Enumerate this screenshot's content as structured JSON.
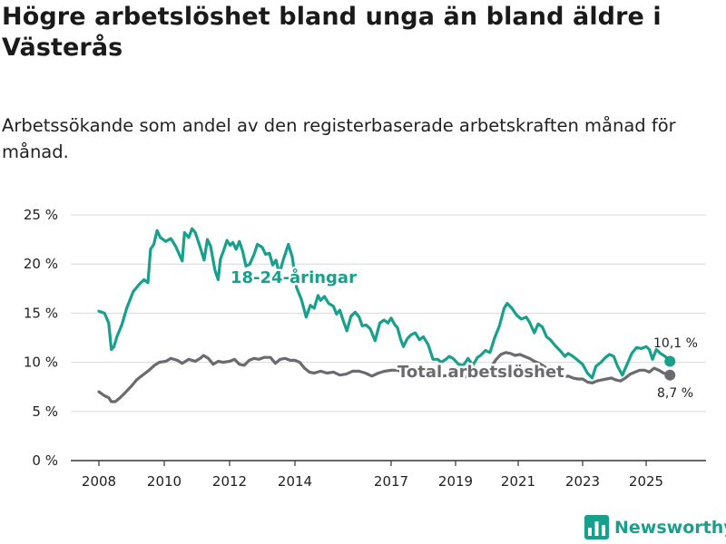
{
  "title": "Högre arbetslöshet bland unga än bland äldre i Västerås",
  "subtitle": "Arbetssökande som andel av den registerbaserade arbetskraften månad för månad.",
  "brand": {
    "name": "Newsworthy",
    "color": "#17a08c"
  },
  "chart_data": {
    "type": "line",
    "y_tick_labels": [
      "0 %",
      "5 %",
      "10 %",
      "15 %",
      "20 %",
      "25 %"
    ],
    "x_tick_labels": [
      "2008",
      "2010",
      "2012",
      "2014",
      "2017",
      "2019",
      "2021",
      "2023",
      "2025"
    ],
    "ylim": [
      0,
      25
    ],
    "grid": true,
    "series": [
      {
        "name": "18-24-åringar",
        "label": "18-24-åringar",
        "color": "#17a08c",
        "end_label": "10,1 %",
        "points": [
          [
            2008.0,
            15.2
          ],
          [
            2008.17,
            15.0
          ],
          [
            2008.3,
            14.0
          ],
          [
            2008.38,
            11.3
          ],
          [
            2008.46,
            11.6
          ],
          [
            2008.55,
            12.6
          ],
          [
            2008.7,
            13.8
          ],
          [
            2008.85,
            15.5
          ],
          [
            2009.05,
            17.2
          ],
          [
            2009.25,
            18.0
          ],
          [
            2009.38,
            18.4
          ],
          [
            2009.5,
            18.1
          ],
          [
            2009.58,
            21.5
          ],
          [
            2009.68,
            22.0
          ],
          [
            2009.78,
            23.4
          ],
          [
            2009.88,
            22.7
          ],
          [
            2010.05,
            22.3
          ],
          [
            2010.2,
            22.6
          ],
          [
            2010.35,
            21.8
          ],
          [
            2010.55,
            20.3
          ],
          [
            2010.62,
            23.2
          ],
          [
            2010.75,
            22.7
          ],
          [
            2010.85,
            23.6
          ],
          [
            2010.95,
            23.2
          ],
          [
            2011.1,
            21.7
          ],
          [
            2011.22,
            20.4
          ],
          [
            2011.32,
            22.5
          ],
          [
            2011.42,
            21.8
          ],
          [
            2011.55,
            19.4
          ],
          [
            2011.65,
            18.4
          ],
          [
            2011.72,
            20.5
          ],
          [
            2011.82,
            21.4
          ],
          [
            2011.92,
            22.4
          ],
          [
            2012.02,
            21.9
          ],
          [
            2012.1,
            22.2
          ],
          [
            2012.2,
            21.5
          ],
          [
            2012.3,
            22.3
          ],
          [
            2012.4,
            21.3
          ],
          [
            2012.5,
            19.8
          ],
          [
            2012.62,
            20.0
          ],
          [
            2012.75,
            21.0
          ],
          [
            2012.85,
            22.0
          ],
          [
            2013.0,
            21.7
          ],
          [
            2013.1,
            21.0
          ],
          [
            2013.22,
            21.1
          ],
          [
            2013.32,
            19.9
          ],
          [
            2013.42,
            20.4
          ],
          [
            2013.52,
            19.0
          ],
          [
            2013.65,
            20.5
          ],
          [
            2013.8,
            22.0
          ],
          [
            2013.92,
            20.7
          ],
          [
            2014.05,
            17.6
          ],
          [
            2014.2,
            16.4
          ],
          [
            2014.35,
            14.6
          ],
          [
            2014.48,
            15.8
          ],
          [
            2014.6,
            15.5
          ],
          [
            2014.72,
            16.8
          ],
          [
            2014.8,
            16.3
          ],
          [
            2014.92,
            16.7
          ],
          [
            2015.05,
            16.0
          ],
          [
            2015.2,
            15.7
          ],
          [
            2015.3,
            14.9
          ],
          [
            2015.4,
            15.3
          ],
          [
            2015.5,
            14.3
          ],
          [
            2015.62,
            13.2
          ],
          [
            2015.75,
            14.7
          ],
          [
            2015.88,
            15.1
          ],
          [
            2016.0,
            14.6
          ],
          [
            2016.1,
            13.7
          ],
          [
            2016.22,
            13.8
          ],
          [
            2016.35,
            13.4
          ],
          [
            2016.5,
            12.2
          ],
          [
            2016.65,
            14.0
          ],
          [
            2016.78,
            14.3
          ],
          [
            2016.9,
            14.0
          ],
          [
            2017.0,
            14.5
          ],
          [
            2017.1,
            13.9
          ],
          [
            2017.2,
            13.5
          ],
          [
            2017.3,
            12.3
          ],
          [
            2017.38,
            11.6
          ],
          [
            2017.5,
            12.4
          ],
          [
            2017.62,
            12.8
          ],
          [
            2017.75,
            13.0
          ],
          [
            2017.88,
            12.3
          ],
          [
            2018.0,
            12.6
          ],
          [
            2018.15,
            11.8
          ],
          [
            2018.3,
            10.3
          ],
          [
            2018.45,
            10.3
          ],
          [
            2018.55,
            10.0
          ],
          [
            2018.7,
            10.3
          ],
          [
            2018.8,
            10.6
          ],
          [
            2018.92,
            10.4
          ],
          [
            2019.1,
            9.8
          ],
          [
            2019.25,
            9.7
          ],
          [
            2019.4,
            10.4
          ],
          [
            2019.55,
            9.7
          ],
          [
            2019.7,
            10.5
          ],
          [
            2019.8,
            10.7
          ],
          [
            2019.95,
            11.2
          ],
          [
            2020.1,
            11.0
          ],
          [
            2020.25,
            12.5
          ],
          [
            2020.4,
            13.7
          ],
          [
            2020.55,
            15.5
          ],
          [
            2020.65,
            16.0
          ],
          [
            2020.8,
            15.5
          ],
          [
            2020.95,
            14.8
          ],
          [
            2021.1,
            14.4
          ],
          [
            2021.25,
            14.6
          ],
          [
            2021.35,
            14.1
          ],
          [
            2021.5,
            13.0
          ],
          [
            2021.62,
            13.9
          ],
          [
            2021.75,
            13.6
          ],
          [
            2021.88,
            12.6
          ],
          [
            2022.0,
            12.3
          ],
          [
            2022.15,
            11.7
          ],
          [
            2022.3,
            11.2
          ],
          [
            2022.45,
            10.6
          ],
          [
            2022.55,
            10.9
          ],
          [
            2022.7,
            10.6
          ],
          [
            2022.85,
            10.2
          ],
          [
            2023.0,
            9.8
          ],
          [
            2023.15,
            8.9
          ],
          [
            2023.3,
            8.4
          ],
          [
            2023.42,
            9.6
          ],
          [
            2023.58,
            10.0
          ],
          [
            2023.72,
            10.5
          ],
          [
            2023.85,
            10.8
          ],
          [
            2023.98,
            10.6
          ],
          [
            2024.1,
            9.6
          ],
          [
            2024.25,
            8.7
          ],
          [
            2024.4,
            9.8
          ],
          [
            2024.55,
            10.9
          ],
          [
            2024.7,
            11.5
          ],
          [
            2024.85,
            11.4
          ],
          [
            2025.0,
            11.6
          ],
          [
            2025.1,
            11.3
          ],
          [
            2025.2,
            10.3
          ],
          [
            2025.32,
            11.3
          ],
          [
            2025.45,
            10.9
          ],
          [
            2025.6,
            10.6
          ],
          [
            2025.75,
            10.1
          ]
        ]
      },
      {
        "name": "Total arbetslöshet",
        "label": "Total arbetslöshet",
        "color": "#6b6b6f",
        "end_label": "8,7 %",
        "points": [
          [
            2008.0,
            7.0
          ],
          [
            2008.17,
            6.6
          ],
          [
            2008.3,
            6.4
          ],
          [
            2008.38,
            6.0
          ],
          [
            2008.5,
            6.0
          ],
          [
            2008.65,
            6.4
          ],
          [
            2008.8,
            6.9
          ],
          [
            2009.0,
            7.6
          ],
          [
            2009.15,
            8.2
          ],
          [
            2009.3,
            8.6
          ],
          [
            2009.5,
            9.1
          ],
          [
            2009.7,
            9.7
          ],
          [
            2009.85,
            10.0
          ],
          [
            2010.05,
            10.1
          ],
          [
            2010.2,
            10.4
          ],
          [
            2010.4,
            10.2
          ],
          [
            2010.55,
            9.9
          ],
          [
            2010.75,
            10.3
          ],
          [
            2010.95,
            10.1
          ],
          [
            2011.1,
            10.4
          ],
          [
            2011.2,
            10.7
          ],
          [
            2011.35,
            10.4
          ],
          [
            2011.5,
            9.8
          ],
          [
            2011.65,
            10.1
          ],
          [
            2011.8,
            10.0
          ],
          [
            2012.0,
            10.1
          ],
          [
            2012.15,
            10.3
          ],
          [
            2012.3,
            9.8
          ],
          [
            2012.45,
            9.7
          ],
          [
            2012.6,
            10.2
          ],
          [
            2012.75,
            10.4
          ],
          [
            2012.9,
            10.3
          ],
          [
            2013.05,
            10.5
          ],
          [
            2013.25,
            10.5
          ],
          [
            2013.4,
            9.9
          ],
          [
            2013.55,
            10.3
          ],
          [
            2013.7,
            10.4
          ],
          [
            2013.85,
            10.2
          ],
          [
            2014.0,
            10.2
          ],
          [
            2014.15,
            10.0
          ],
          [
            2014.3,
            9.4
          ],
          [
            2014.45,
            9.0
          ],
          [
            2014.6,
            8.9
          ],
          [
            2014.8,
            9.1
          ],
          [
            2015.0,
            8.9
          ],
          [
            2015.2,
            9.0
          ],
          [
            2015.4,
            8.7
          ],
          [
            2015.6,
            8.8
          ],
          [
            2015.8,
            9.1
          ],
          [
            2016.0,
            9.1
          ],
          [
            2016.2,
            8.9
          ],
          [
            2016.4,
            8.6
          ],
          [
            2016.6,
            8.9
          ],
          [
            2016.8,
            9.1
          ],
          [
            2017.0,
            9.2
          ],
          [
            2017.2,
            9.2
          ],
          [
            2017.4,
            8.9
          ],
          [
            2017.6,
            9.0
          ],
          [
            2017.8,
            9.0
          ],
          [
            2018.0,
            9.2
          ],
          [
            2018.2,
            9.0
          ],
          [
            2018.4,
            8.7
          ],
          [
            2018.6,
            8.6
          ],
          [
            2018.8,
            8.7
          ],
          [
            2019.0,
            8.6
          ],
          [
            2019.2,
            8.4
          ],
          [
            2019.4,
            8.6
          ],
          [
            2019.6,
            8.7
          ],
          [
            2019.8,
            9.0
          ],
          [
            2020.0,
            9.2
          ],
          [
            2020.15,
            9.6
          ],
          [
            2020.3,
            10.3
          ],
          [
            2020.45,
            10.8
          ],
          [
            2020.6,
            11.0
          ],
          [
            2020.75,
            10.9
          ],
          [
            2020.9,
            10.7
          ],
          [
            2021.05,
            10.8
          ],
          [
            2021.2,
            10.6
          ],
          [
            2021.35,
            10.4
          ],
          [
            2021.5,
            10.1
          ],
          [
            2021.65,
            9.9
          ],
          [
            2021.8,
            9.6
          ],
          [
            2021.95,
            9.2
          ],
          [
            2022.1,
            8.9
          ],
          [
            2022.25,
            8.7
          ],
          [
            2022.4,
            8.5
          ],
          [
            2022.55,
            8.6
          ],
          [
            2022.7,
            8.4
          ],
          [
            2022.85,
            8.3
          ],
          [
            2023.0,
            8.3
          ],
          [
            2023.15,
            8.0
          ],
          [
            2023.3,
            7.9
          ],
          [
            2023.45,
            8.1
          ],
          [
            2023.6,
            8.2
          ],
          [
            2023.75,
            8.3
          ],
          [
            2023.9,
            8.4
          ],
          [
            2024.05,
            8.2
          ],
          [
            2024.2,
            8.1
          ],
          [
            2024.35,
            8.4
          ],
          [
            2024.5,
            8.8
          ],
          [
            2024.65,
            9.0
          ],
          [
            2024.8,
            9.2
          ],
          [
            2024.95,
            9.2
          ],
          [
            2025.1,
            9.0
          ],
          [
            2025.25,
            9.4
          ],
          [
            2025.4,
            9.2
          ],
          [
            2025.55,
            8.9
          ],
          [
            2025.75,
            8.7
          ]
        ]
      }
    ]
  }
}
